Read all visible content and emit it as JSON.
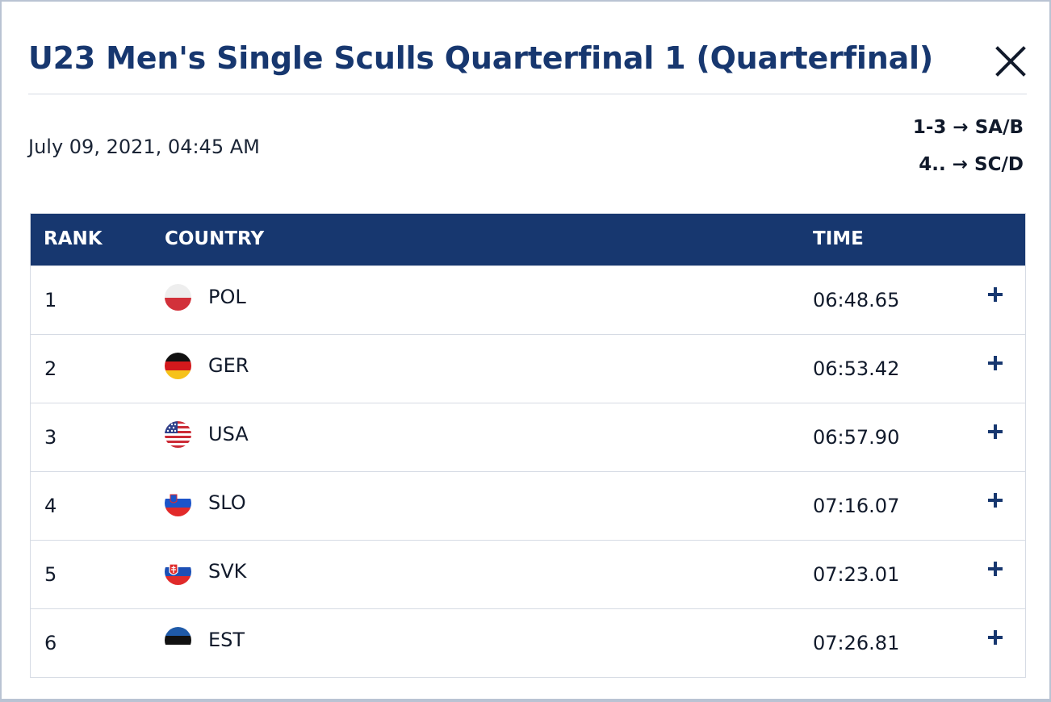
{
  "modal": {
    "title": "U23 Men's Single Sculls Quarterfinal 1 (Quarterfinal)",
    "date": "July 09, 2021, 04:45 AM",
    "progression": [
      "1-3 → SA/B",
      "4.. → SC/D"
    ]
  },
  "table": {
    "headers": {
      "rank": "RANK",
      "country": "COUNTRY",
      "time": "TIME"
    },
    "rows": [
      {
        "rank": "1",
        "country": "POL",
        "time": "06:48.65",
        "flag": "poland-flag-icon"
      },
      {
        "rank": "2",
        "country": "GER",
        "time": "06:53.42",
        "flag": "germany-flag-icon"
      },
      {
        "rank": "3",
        "country": "USA",
        "time": "06:57.90",
        "flag": "usa-flag-icon"
      },
      {
        "rank": "4",
        "country": "SLO",
        "time": "07:16.07",
        "flag": "slovenia-flag-icon"
      },
      {
        "rank": "5",
        "country": "SVK",
        "time": "07:23.01",
        "flag": "slovakia-flag-icon"
      },
      {
        "rank": "6",
        "country": "EST",
        "time": "07:26.81",
        "flag": "estonia-flag-icon"
      }
    ]
  },
  "icons": {
    "close": "close-icon",
    "expand": "plus-icon"
  },
  "colors": {
    "brand": "#17376f",
    "text": "#111a2b",
    "divider": "#d6dbe4"
  }
}
